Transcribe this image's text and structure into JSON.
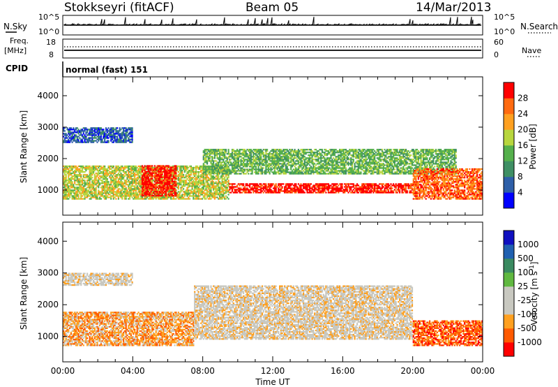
{
  "header": {
    "station": "Stokkseyri (fitACF)",
    "beam": "Beam 05",
    "date": "14/Mar/2013"
  },
  "panels": {
    "nsky": {
      "left_label": "N.Sky",
      "right_label": "N.Search",
      "ticks": [
        "10^5",
        "10^0"
      ],
      "right_ticks": [
        "10^5",
        "10^0"
      ]
    },
    "freq": {
      "left_label_1": "Freq.",
      "left_label_2": "[MHz]",
      "ticks": [
        "18",
        "8"
      ],
      "right_label": "Nave",
      "right_ticks": [
        "60",
        "0"
      ]
    },
    "cpid": {
      "left_label": "CPID",
      "value": "normal (fast) 151"
    }
  },
  "colors": {
    "power": [
      "#0000ff",
      "#2e5fa8",
      "#3f8f64",
      "#55b04c",
      "#b8d63e",
      "#ffa020",
      "#ff6a10",
      "#ff0000"
    ],
    "velocity": [
      "#ff0000",
      "#ff5a00",
      "#ffa020",
      "#c8c8c0",
      "#c8c8c0",
      "#60b840",
      "#3a8a60",
      "#2060b0",
      "#1010c0"
    ]
  },
  "chart_data": [
    {
      "type": "heatmap",
      "name": "power",
      "ylabel": "Slant Range [km]",
      "xlim": [
        "00:00",
        "24:00"
      ],
      "ylim": [
        200,
        4600
      ],
      "yticks": [
        "4000",
        "3000",
        "2000",
        "1000"
      ],
      "colorbar": {
        "label": "Power [dB]",
        "ticks": [
          "28",
          "24",
          "20",
          "16",
          "12",
          "8",
          "4"
        ],
        "range": [
          0,
          32
        ]
      },
      "bands": [
        {
          "start": 0.0,
          "end": 9.5,
          "range_low": 700,
          "range_high": 1800,
          "level": 4
        },
        {
          "start": 4.5,
          "end": 6.5,
          "range_low": 800,
          "range_high": 1800,
          "level": 7
        },
        {
          "start": 9.5,
          "end": 20.0,
          "range_low": 900,
          "range_high": 1200,
          "level": 7
        },
        {
          "start": 8.0,
          "end": 22.5,
          "range_low": 1500,
          "range_high": 2300,
          "level": 3
        },
        {
          "start": 20.0,
          "end": 24.0,
          "range_low": 700,
          "range_high": 1700,
          "level": 6
        },
        {
          "start": 0.0,
          "end": 4.0,
          "range_low": 2500,
          "range_high": 3000,
          "level": 1
        }
      ]
    },
    {
      "type": "heatmap",
      "name": "velocity",
      "ylabel": "Slant Range [km]",
      "xlabel": "Time UT",
      "xticks": [
        "00:00",
        "04:00",
        "08:00",
        "12:00",
        "16:00",
        "20:00",
        "00:00"
      ],
      "xlim": [
        "00:00",
        "24:00"
      ],
      "ylim": [
        200,
        4600
      ],
      "yticks": [
        "4000",
        "3000",
        "2000",
        "1000"
      ],
      "colorbar": {
        "label": "Velocity [m s^-1]",
        "ticks": [
          "1000",
          "500",
          "100",
          "25",
          "-25",
          "-100",
          "-500",
          "-1000"
        ],
        "range": [
          -1200,
          1200
        ]
      },
      "bands": [
        {
          "start": 0.0,
          "end": 7.5,
          "range_low": 700,
          "range_high": 1800,
          "level": 2
        },
        {
          "start": 7.5,
          "end": 20.0,
          "range_low": 900,
          "range_high": 2600,
          "level": 3
        },
        {
          "start": 20.0,
          "end": 24.0,
          "range_low": 700,
          "range_high": 1500,
          "level": 1
        },
        {
          "start": 0.0,
          "end": 4.0,
          "range_low": 2600,
          "range_high": 3000,
          "level": 3
        }
      ]
    }
  ]
}
